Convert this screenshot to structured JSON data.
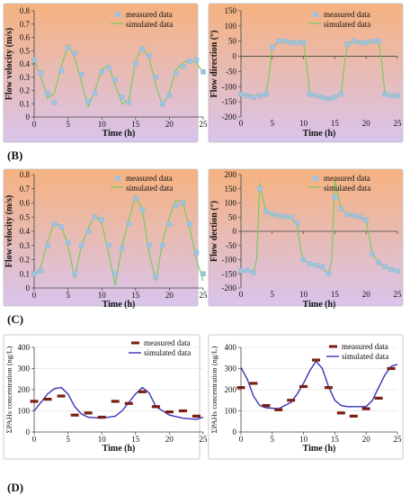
{
  "panel_labels": [
    "(B)",
    "(C)",
    "(D)"
  ],
  "colors": {
    "measured_marker": "#9fc3de",
    "measured_bar": "#7a1f12",
    "simulated_green": "#79cc5a",
    "simulated_blue": "#3a33b8",
    "panel_top": "#f6b27f",
    "panel_bottom": "#d9c4ec"
  },
  "chart_data": [
    {
      "type": "line",
      "title": "",
      "xlabel": "Time (h)",
      "ylabel": "Flow velocity (m/s)",
      "xlim": [
        0,
        25
      ],
      "ylim": [
        0,
        0.8
      ],
      "xticks": [
        0,
        5,
        10,
        15,
        20,
        25
      ],
      "yticks": [
        0,
        0.1,
        0.2,
        0.3,
        0.4,
        0.5,
        0.6,
        0.7,
        0.8
      ],
      "ytick_labels": [
        "0",
        "0.1",
        "0.2",
        "0.3",
        "0.4",
        "0.5",
        "0.6",
        "0.7",
        "0.8"
      ],
      "series": [
        {
          "name": "measured data",
          "x": [
            0,
            1,
            2,
            3,
            4,
            5,
            6,
            7,
            8,
            9,
            10,
            11,
            12,
            13,
            14,
            15,
            16,
            17,
            18,
            19,
            20,
            21,
            22,
            23,
            24,
            25
          ],
          "values": [
            0.43,
            0.33,
            0.18,
            0.11,
            0.35,
            0.52,
            0.48,
            0.32,
            0.12,
            0.18,
            0.34,
            0.37,
            0.28,
            0.15,
            0.11,
            0.4,
            0.51,
            0.46,
            0.3,
            0.1,
            0.16,
            0.33,
            0.38,
            0.42,
            0.43,
            0.34
          ]
        },
        {
          "name": "simulated data",
          "x": [
            0,
            1,
            2,
            3,
            4,
            5,
            6,
            7,
            8,
            9,
            10,
            11,
            12,
            13,
            14,
            15,
            16,
            17,
            18,
            19,
            20,
            21,
            22,
            23,
            24,
            25
          ],
          "values": [
            0.44,
            0.3,
            0.14,
            0.18,
            0.38,
            0.54,
            0.45,
            0.26,
            0.08,
            0.2,
            0.36,
            0.39,
            0.24,
            0.1,
            0.13,
            0.42,
            0.53,
            0.44,
            0.24,
            0.08,
            0.19,
            0.36,
            0.41,
            0.43,
            0.41,
            0.33
          ]
        }
      ],
      "legend": "top-right"
    },
    {
      "type": "line",
      "title": "",
      "xlabel": "Time (h)",
      "ylabel": "Flow direction (°)",
      "xlim": [
        0,
        25
      ],
      "ylim": [
        -200,
        150
      ],
      "xticks": [
        0,
        5,
        10,
        15,
        20,
        25
      ],
      "yticks": [
        -200,
        -150,
        -100,
        -50,
        0,
        50,
        100,
        150
      ],
      "ytick_labels": [
        "-200",
        "-150",
        "-100",
        "-50",
        "0",
        "50",
        "100",
        "150"
      ],
      "series": [
        {
          "name": "measured data",
          "x": [
            0,
            1,
            2,
            3,
            4,
            5,
            6,
            7,
            8,
            9,
            10,
            11,
            12,
            13,
            14,
            15,
            16,
            17,
            18,
            19,
            20,
            21,
            22,
            23,
            24,
            25
          ],
          "values": [
            -125,
            -130,
            -135,
            -130,
            -125,
            30,
            50,
            50,
            45,
            45,
            45,
            -125,
            -130,
            -135,
            -140,
            -135,
            -125,
            40,
            50,
            45,
            45,
            50,
            50,
            -125,
            -130,
            -130
          ]
        },
        {
          "name": "simulated data",
          "x": [
            0,
            1,
            2,
            3,
            4,
            4.5,
            5,
            6,
            7,
            8,
            9,
            10,
            10.5,
            11,
            12,
            13,
            14,
            15,
            16,
            16.5,
            17,
            18,
            19,
            20,
            21,
            22,
            22.5,
            23,
            24,
            25
          ],
          "values": [
            -125,
            -128,
            -130,
            -128,
            -125,
            -60,
            30,
            48,
            50,
            48,
            47,
            45,
            -30,
            -125,
            -130,
            -135,
            -138,
            -135,
            -128,
            -30,
            40,
            48,
            47,
            47,
            48,
            50,
            -20,
            -125,
            -128,
            -130
          ]
        }
      ],
      "legend": "top-right"
    },
    {
      "type": "line",
      "title": "",
      "xlabel": "Time (h)",
      "ylabel": "Flow velocity (m/s)",
      "xlim": [
        0,
        25
      ],
      "ylim": [
        0,
        0.8
      ],
      "xticks": [
        0,
        5,
        10,
        15,
        20,
        25
      ],
      "yticks": [
        0,
        0.1,
        0.2,
        0.3,
        0.4,
        0.5,
        0.6,
        0.7,
        0.8
      ],
      "ytick_labels": [
        "0",
        "0.1",
        "0.2",
        "0.3",
        "0.4",
        "0.5",
        "0.6",
        "0.7",
        "0.8"
      ],
      "series": [
        {
          "name": "measured data",
          "x": [
            0,
            1,
            2,
            3,
            4,
            5,
            6,
            7,
            8,
            9,
            10,
            11,
            12,
            13,
            14,
            15,
            16,
            17,
            18,
            19,
            20,
            21,
            22,
            23,
            24,
            25
          ],
          "values": [
            0.1,
            0.12,
            0.3,
            0.45,
            0.43,
            0.32,
            0.1,
            0.3,
            0.4,
            0.5,
            0.48,
            0.3,
            0.1,
            0.28,
            0.45,
            0.63,
            0.55,
            0.3,
            0.08,
            0.3,
            0.45,
            0.58,
            0.6,
            0.45,
            0.25,
            0.1
          ]
        },
        {
          "name": "simulated data",
          "x": [
            0,
            1,
            2,
            3,
            4,
            5,
            6,
            7,
            8,
            9,
            10,
            11,
            12,
            13,
            14,
            15,
            16,
            17,
            18,
            19,
            20,
            21,
            22,
            23,
            24,
            25
          ],
          "values": [
            0.08,
            0.15,
            0.33,
            0.46,
            0.44,
            0.3,
            0.07,
            0.3,
            0.42,
            0.52,
            0.46,
            0.25,
            0.02,
            0.3,
            0.48,
            0.65,
            0.55,
            0.25,
            0.05,
            0.33,
            0.5,
            0.62,
            0.6,
            0.42,
            0.2,
            0.05
          ]
        }
      ],
      "legend": "top-right"
    },
    {
      "type": "line",
      "title": "",
      "xlabel": "Time (h)",
      "ylabel": "Flow dection (°)",
      "xlim": [
        0,
        25
      ],
      "ylim": [
        -200,
        200
      ],
      "xticks": [
        0,
        5,
        10,
        15,
        20,
        25
      ],
      "yticks": [
        -200,
        -150,
        -100,
        -50,
        0,
        50,
        100,
        150,
        200
      ],
      "ytick_labels": [
        "-200",
        "-150",
        "-100",
        "-50",
        "0",
        "50",
        "100",
        "150",
        "200"
      ],
      "series": [
        {
          "name": "measured data",
          "x": [
            0,
            1,
            2,
            3,
            4,
            5,
            6,
            7,
            8,
            9,
            10,
            11,
            12,
            13,
            14,
            15,
            16,
            17,
            18,
            19,
            20,
            21,
            22,
            23,
            24,
            25
          ],
          "values": [
            -140,
            -138,
            -145,
            150,
            70,
            60,
            55,
            52,
            50,
            30,
            -100,
            -115,
            -120,
            -125,
            -150,
            120,
            80,
            60,
            55,
            50,
            40,
            -80,
            -110,
            -125,
            -135,
            -140
          ]
        },
        {
          "name": "simulated data",
          "x": [
            0,
            1,
            2,
            2.5,
            3,
            4,
            5,
            6,
            7,
            8,
            9,
            9.5,
            10,
            11,
            12,
            13,
            14,
            14.5,
            15,
            16,
            17,
            18,
            19,
            20,
            21,
            22,
            23,
            24,
            25
          ],
          "values": [
            -140,
            -140,
            -145,
            -100,
            170,
            70,
            60,
            55,
            52,
            48,
            20,
            -60,
            -100,
            -115,
            -120,
            -130,
            -150,
            -100,
            180,
            80,
            60,
            55,
            50,
            40,
            -80,
            -110,
            -125,
            -135,
            -140
          ]
        }
      ],
      "legend": "top-right"
    },
    {
      "type": "line",
      "title": "",
      "xlabel": "Time (h)",
      "ylabel": "ΣPAHs concentration (ng/L)",
      "xlim": [
        0,
        25
      ],
      "ylim": [
        0,
        400
      ],
      "xticks": [
        0,
        5,
        10,
        15,
        20,
        25
      ],
      "yticks": [
        0,
        100,
        200,
        300,
        400
      ],
      "ytick_labels": [
        "0",
        "100",
        "200",
        "300",
        "400"
      ],
      "series": [
        {
          "name": "measured data",
          "x": [
            0,
            2,
            4,
            6,
            8,
            10,
            12,
            14,
            16,
            18,
            20,
            22,
            24
          ],
          "values": [
            145,
            155,
            170,
            80,
            90,
            70,
            145,
            135,
            190,
            120,
            95,
            100,
            75
          ]
        },
        {
          "name": "simulated data",
          "x": [
            0,
            1,
            2,
            3,
            4,
            5,
            6,
            7,
            8,
            10,
            12,
            13,
            14,
            15,
            16,
            17,
            18,
            20,
            22,
            24,
            25
          ],
          "values": [
            100,
            140,
            180,
            205,
            210,
            180,
            120,
            85,
            70,
            65,
            75,
            100,
            140,
            180,
            210,
            185,
            120,
            80,
            65,
            60,
            70
          ]
        }
      ],
      "legend": "top-right"
    },
    {
      "type": "line",
      "title": "",
      "xlabel": "Time (h)",
      "ylabel": "ΣPAHs concentration (ng/L)",
      "xlim": [
        0,
        25
      ],
      "ylim": [
        0,
        400
      ],
      "xticks": [
        0,
        5,
        10,
        15,
        20,
        25
      ],
      "yticks": [
        0,
        100,
        200,
        300,
        400
      ],
      "ytick_labels": [
        "0",
        "100",
        "200",
        "300",
        "400"
      ],
      "series": [
        {
          "name": "measured data",
          "x": [
            0,
            2,
            4,
            6,
            8,
            10,
            12,
            14,
            16,
            18,
            20,
            22,
            24
          ],
          "values": [
            210,
            230,
            125,
            105,
            150,
            215,
            340,
            210,
            90,
            75,
            110,
            160,
            300
          ]
        },
        {
          "name": "simulated data",
          "x": [
            0,
            1,
            2,
            3,
            4,
            6,
            8,
            9,
            10,
            11,
            12,
            13,
            14,
            15,
            16,
            17,
            18,
            20,
            21,
            22,
            23,
            24,
            25
          ],
          "values": [
            305,
            250,
            170,
            125,
            115,
            110,
            140,
            180,
            230,
            290,
            335,
            300,
            215,
            150,
            125,
            120,
            120,
            120,
            150,
            210,
            270,
            310,
            320
          ]
        }
      ],
      "legend": "top-right"
    }
  ],
  "legend_labels": {
    "measured": "measured data",
    "simulated": "simulated data"
  }
}
